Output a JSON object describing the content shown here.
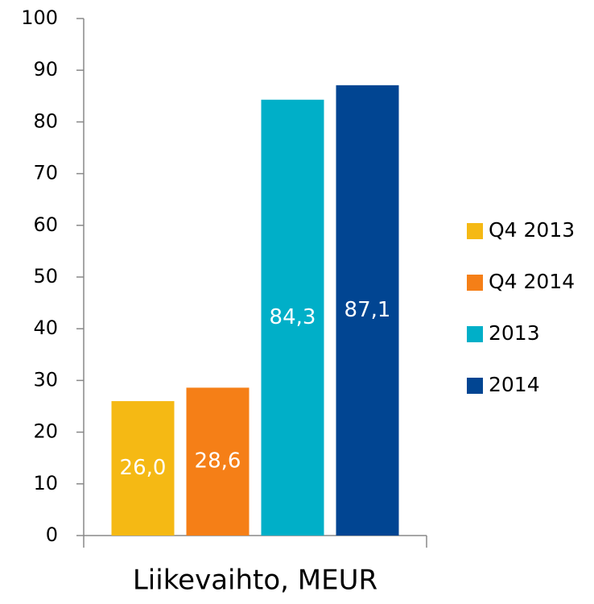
{
  "chart_data": {
    "type": "bar",
    "categories": [
      "Liikevaihto, MEUR"
    ],
    "series": [
      {
        "name": "Q4 2013",
        "color": "#f5b914",
        "values": [
          26.0
        ],
        "value_labels": [
          "26,0"
        ]
      },
      {
        "name": "Q4 2014",
        "color": "#f57f17",
        "values": [
          28.6
        ],
        "value_labels": [
          "28,6"
        ]
      },
      {
        "name": "2013",
        "color": "#00afc8",
        "values": [
          84.3
        ],
        "value_labels": [
          "84,3"
        ]
      },
      {
        "name": "2014",
        "color": "#014592",
        "values": [
          87.1
        ],
        "value_labels": [
          "87,1"
        ]
      }
    ],
    "ylim": [
      0,
      100
    ],
    "yticks": [
      0,
      10,
      20,
      30,
      40,
      50,
      60,
      70,
      80,
      90,
      100
    ],
    "grid": false,
    "legend": "right"
  }
}
